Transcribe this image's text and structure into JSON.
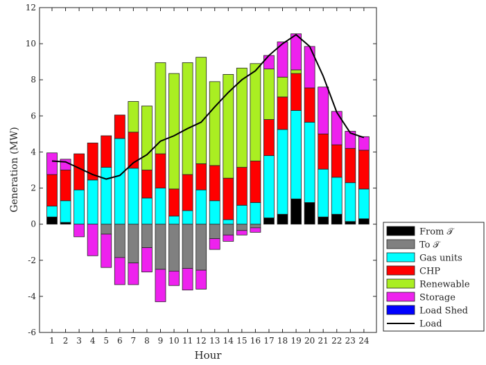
{
  "chart_data": {
    "type": "bar",
    "stacked": true,
    "xlabel": "Hour",
    "ylabel": "Generation (MW)",
    "ylim": [
      -6,
      12
    ],
    "yticks": [
      -6,
      -4,
      -2,
      0,
      2,
      4,
      6,
      8,
      10,
      12
    ],
    "categories": [
      "1",
      "2",
      "3",
      "4",
      "5",
      "6",
      "7",
      "8",
      "9",
      "10",
      "11",
      "12",
      "13",
      "14",
      "15",
      "16",
      "17",
      "18",
      "19",
      "20",
      "21",
      "22",
      "23",
      "24"
    ],
    "legend_position": "bottom-right-outside",
    "series": [
      {
        "name": "From 𝒯",
        "color": "#000000",
        "values": [
          0.4,
          0.1,
          0,
          0,
          0,
          0,
          0,
          0,
          0,
          0,
          0,
          0,
          0,
          0,
          0,
          0,
          0.35,
          0.55,
          1.4,
          1.2,
          0.4,
          0.55,
          0.15,
          0.3
        ]
      },
      {
        "name": "To 𝒯",
        "color": "#808080",
        "values": [
          0,
          0,
          0,
          0,
          -0.55,
          -1.85,
          -2.15,
          -1.3,
          -2.5,
          -2.6,
          -2.45,
          -2.55,
          -0.8,
          -0.6,
          -0.35,
          -0.2,
          0,
          0,
          0,
          0,
          0,
          0,
          0,
          0
        ]
      },
      {
        "name": "Gas units",
        "color": "#00ffff",
        "values": [
          0.6,
          1.2,
          1.9,
          2.45,
          3.15,
          4.75,
          3.1,
          1.45,
          2.0,
          0.45,
          0.75,
          1.9,
          1.3,
          0.25,
          1.05,
          1.2,
          3.45,
          4.7,
          4.9,
          4.45,
          2.65,
          2.05,
          2.15,
          1.65
        ]
      },
      {
        "name": "CHP",
        "color": "#ff0000",
        "values": [
          1.75,
          1.7,
          2.0,
          2.05,
          1.75,
          1.3,
          2.0,
          1.55,
          1.9,
          1.5,
          2.0,
          1.45,
          1.95,
          2.3,
          2.1,
          2.3,
          2.0,
          1.8,
          2.05,
          1.9,
          1.95,
          1.8,
          1.9,
          2.15
        ]
      },
      {
        "name": "Renewable",
        "color": "#aaee22",
        "values": [
          0,
          0,
          0,
          0,
          0,
          0,
          1.7,
          3.55,
          5.05,
          6.4,
          6.2,
          5.9,
          4.65,
          5.75,
          5.5,
          5.4,
          2.8,
          1.1,
          0.2,
          0,
          0,
          0,
          0,
          0
        ]
      },
      {
        "name": "Storage",
        "color": "#ee22ee",
        "values": [
          [
            1.2,
            0
          ],
          [
            0.6,
            0
          ],
          [
            0,
            -0.7
          ],
          [
            0,
            -1.75
          ],
          [
            0,
            -1.85
          ],
          [
            0,
            -1.5
          ],
          [
            0,
            -1.2
          ],
          [
            0,
            -1.35
          ],
          [
            0,
            -1.8
          ],
          [
            0,
            -0.8
          ],
          [
            0,
            -1.2
          ],
          [
            0,
            -1.05
          ],
          [
            0,
            -0.6
          ],
          [
            0,
            -0.35
          ],
          [
            0,
            -0.25
          ],
          [
            0,
            -0.25
          ],
          [
            0.75,
            0
          ],
          [
            1.95,
            0
          ],
          [
            2.0,
            0
          ],
          [
            2.3,
            0
          ],
          [
            2.6,
            0
          ],
          [
            1.85,
            0
          ],
          [
            0.95,
            0
          ],
          [
            0.75,
            0
          ]
        ]
      },
      {
        "name": "Load Shed",
        "color": "#0000ff",
        "values": [
          0,
          0,
          0,
          0,
          0,
          0,
          0,
          0,
          0,
          0,
          0,
          0,
          0,
          0,
          0,
          0,
          0,
          0,
          0,
          0,
          0,
          0,
          0,
          0
        ]
      }
    ],
    "line_series": {
      "name": "Load",
      "color": "#000000",
      "values": [
        3.5,
        3.45,
        3.1,
        2.75,
        2.5,
        2.7,
        3.4,
        3.85,
        4.6,
        4.9,
        5.3,
        5.65,
        6.5,
        7.3,
        8.0,
        8.5,
        9.35,
        10.0,
        10.5,
        9.85,
        8.2,
        6.2,
        5.05,
        4.8
      ]
    }
  }
}
